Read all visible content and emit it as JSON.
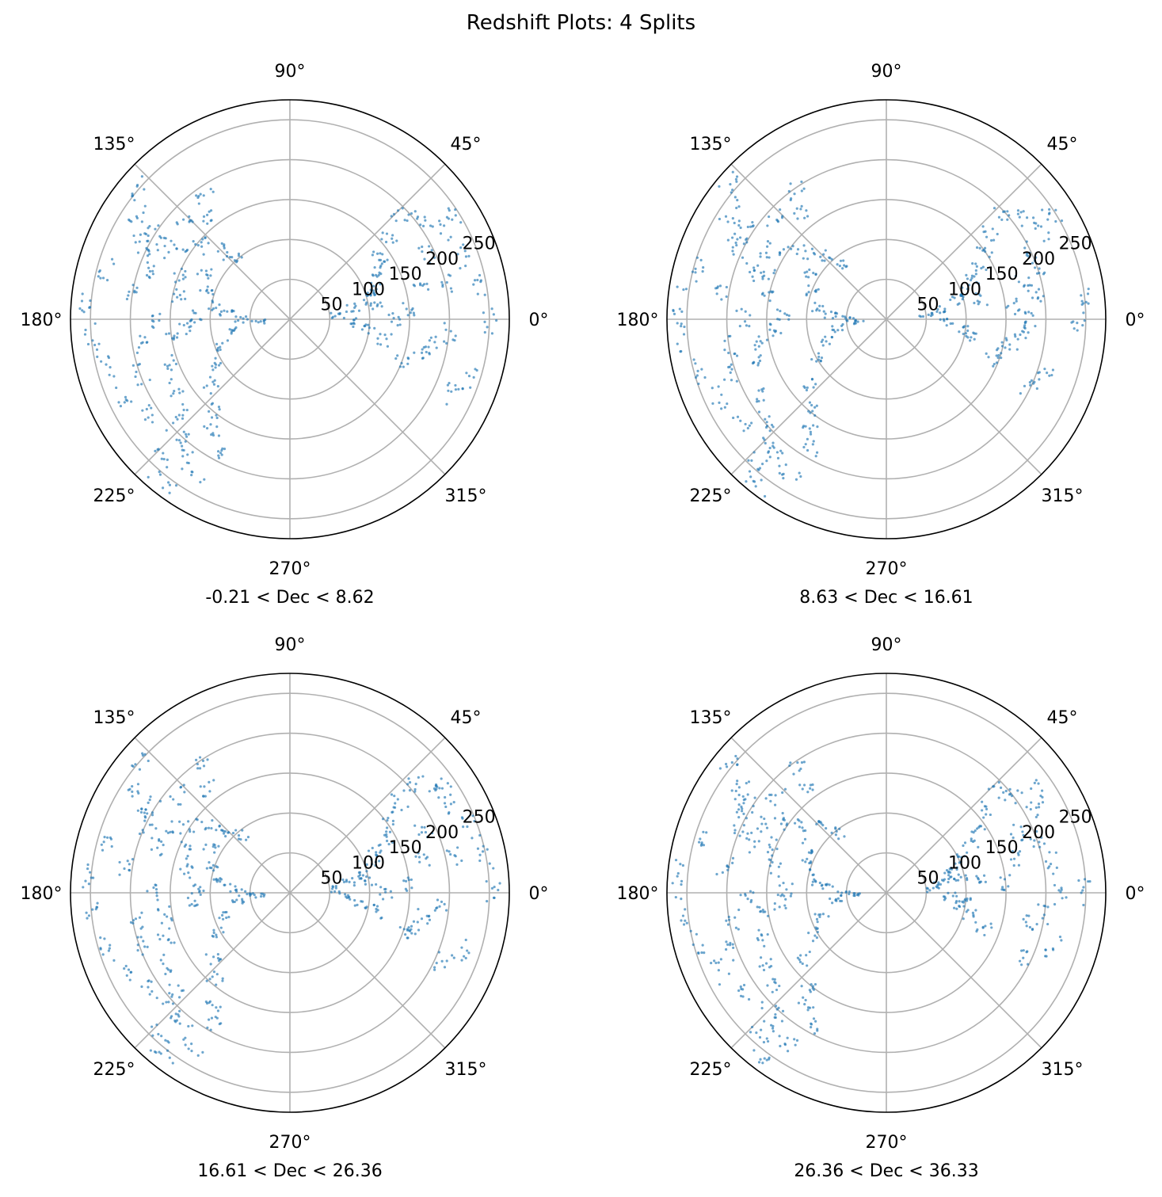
{
  "chart_data": {
    "type": "scatter",
    "title": "Redshift Plots: 4 Splits",
    "projection": "polar",
    "theta_ticks": [
      "0°",
      "45°",
      "90°",
      "135°",
      "180°",
      "225°",
      "270°",
      "315°"
    ],
    "r_ticks": [
      "50",
      "100",
      "150",
      "200",
      "250"
    ],
    "r_tick_values": [
      50,
      100,
      150,
      200,
      250
    ],
    "rlim": [
      0,
      275
    ],
    "color": "#1f77b4",
    "grid": true,
    "panels": [
      {
        "xlabel": "-0.21 < Dec < 8.62",
        "points": [
          [
            140,
            250
          ],
          [
            145,
            230
          ],
          [
            150,
            215
          ],
          [
            155,
            200
          ],
          [
            160,
            185
          ],
          [
            150,
            180
          ],
          [
            145,
            160
          ],
          [
            140,
            140
          ],
          [
            135,
            120
          ],
          [
            130,
            100
          ],
          [
            150,
            120
          ],
          [
            160,
            110
          ],
          [
            170,
            95
          ],
          [
            175,
            80
          ],
          [
            180,
            60
          ],
          [
            185,
            40
          ],
          [
            190,
            70
          ],
          [
            200,
            90
          ],
          [
            210,
            110
          ],
          [
            220,
            130
          ],
          [
            230,
            150
          ],
          [
            235,
            170
          ],
          [
            240,
            190
          ],
          [
            225,
            200
          ],
          [
            215,
            215
          ],
          [
            205,
            230
          ],
          [
            195,
            240
          ],
          [
            185,
            250
          ],
          [
            175,
            255
          ],
          [
            165,
            240
          ],
          [
            170,
            200
          ],
          [
            180,
            170
          ],
          [
            190,
            150
          ],
          [
            200,
            160
          ],
          [
            210,
            170
          ],
          [
            220,
            180
          ],
          [
            230,
            210
          ],
          [
            228,
            235
          ],
          [
            238,
            225
          ],
          [
            232,
            260
          ],
          [
            178,
            120
          ],
          [
            168,
            140
          ],
          [
            158,
            150
          ],
          [
            148,
            200
          ],
          [
            138,
            180
          ],
          [
            128,
            160
          ],
          [
            125,
            190
          ],
          [
            200,
            200
          ],
          [
            190,
            190
          ],
          [
            185,
            130
          ],
          [
            5,
            60
          ],
          [
            10,
            80
          ],
          [
            15,
            100
          ],
          [
            20,
            110
          ],
          [
            25,
            120
          ],
          [
            30,
            130
          ],
          [
            35,
            140
          ],
          [
            40,
            160
          ],
          [
            42,
            190
          ],
          [
            38,
            210
          ],
          [
            30,
            220
          ],
          [
            20,
            230
          ],
          [
            10,
            240
          ],
          [
            0,
            250
          ],
          [
            -5,
            200
          ],
          [
            -10,
            180
          ],
          [
            -15,
            170
          ],
          [
            -20,
            150
          ],
          [
            -12,
            120
          ],
          [
            -8,
            100
          ],
          [
            -3,
            80
          ],
          [
            5,
            150
          ],
          [
            15,
            170
          ],
          [
            25,
            190
          ],
          [
            33,
            240
          ],
          [
            -25,
            220
          ],
          [
            -18,
            240
          ],
          [
            0,
            130
          ],
          [
            8,
            110
          ],
          [
            12,
            200
          ]
        ]
      },
      {
        "xlabel": "8.63 < Dec < 16.61",
        "points": [
          [
            140,
            260
          ],
          [
            145,
            235
          ],
          [
            150,
            220
          ],
          [
            155,
            205
          ],
          [
            160,
            180
          ],
          [
            150,
            170
          ],
          [
            145,
            150
          ],
          [
            140,
            130
          ],
          [
            135,
            110
          ],
          [
            130,
            90
          ],
          [
            150,
            110
          ],
          [
            160,
            100
          ],
          [
            170,
            85
          ],
          [
            175,
            70
          ],
          [
            180,
            50
          ],
          [
            185,
            35
          ],
          [
            190,
            60
          ],
          [
            200,
            80
          ],
          [
            210,
            100
          ],
          [
            220,
            125
          ],
          [
            230,
            145
          ],
          [
            235,
            165
          ],
          [
            240,
            185
          ],
          [
            225,
            210
          ],
          [
            215,
            220
          ],
          [
            205,
            235
          ],
          [
            195,
            245
          ],
          [
            185,
            255
          ],
          [
            175,
            260
          ],
          [
            165,
            245
          ],
          [
            170,
            210
          ],
          [
            180,
            180
          ],
          [
            190,
            160
          ],
          [
            200,
            170
          ],
          [
            210,
            185
          ],
          [
            220,
            195
          ],
          [
            230,
            220
          ],
          [
            228,
            240
          ],
          [
            238,
            230
          ],
          [
            232,
            262
          ],
          [
            178,
            130
          ],
          [
            168,
            150
          ],
          [
            158,
            160
          ],
          [
            148,
            210
          ],
          [
            138,
            190
          ],
          [
            128,
            170
          ],
          [
            125,
            200
          ],
          [
            200,
            210
          ],
          [
            190,
            200
          ],
          [
            185,
            140
          ],
          [
            5,
            50
          ],
          [
            10,
            70
          ],
          [
            15,
            90
          ],
          [
            20,
            105
          ],
          [
            25,
            120
          ],
          [
            30,
            135
          ],
          [
            35,
            150
          ],
          [
            40,
            170
          ],
          [
            42,
            195
          ],
          [
            38,
            215
          ],
          [
            30,
            225
          ],
          [
            20,
            200
          ],
          [
            10,
            190
          ],
          [
            0,
            180
          ],
          [
            -5,
            170
          ],
          [
            -10,
            160
          ],
          [
            -15,
            150
          ],
          [
            -20,
            140
          ],
          [
            -12,
            110
          ],
          [
            -8,
            95
          ],
          [
            -3,
            75
          ],
          [
            5,
            160
          ],
          [
            15,
            180
          ],
          [
            25,
            200
          ],
          [
            33,
            245
          ],
          [
            -25,
            200
          ],
          [
            -18,
            210
          ],
          [
            0,
            240
          ],
          [
            8,
            250
          ],
          [
            12,
            120
          ]
        ]
      },
      {
        "xlabel": "16.61 < Dec < 26.36",
        "points": [
          [
            140,
            250
          ],
          [
            145,
            235
          ],
          [
            150,
            210
          ],
          [
            155,
            195
          ],
          [
            160,
            175
          ],
          [
            150,
            165
          ],
          [
            145,
            150
          ],
          [
            140,
            130
          ],
          [
            135,
            115
          ],
          [
            130,
            95
          ],
          [
            150,
            115
          ],
          [
            160,
            105
          ],
          [
            170,
            90
          ],
          [
            175,
            75
          ],
          [
            180,
            55
          ],
          [
            185,
            40
          ],
          [
            190,
            65
          ],
          [
            200,
            85
          ],
          [
            210,
            105
          ],
          [
            220,
            125
          ],
          [
            230,
            145
          ],
          [
            235,
            165
          ],
          [
            240,
            190
          ],
          [
            225,
            205
          ],
          [
            215,
            215
          ],
          [
            205,
            230
          ],
          [
            195,
            240
          ],
          [
            185,
            250
          ],
          [
            175,
            255
          ],
          [
            165,
            235
          ],
          [
            170,
            210
          ],
          [
            180,
            175
          ],
          [
            190,
            160
          ],
          [
            200,
            165
          ],
          [
            210,
            180
          ],
          [
            220,
            190
          ],
          [
            230,
            215
          ],
          [
            228,
            240
          ],
          [
            238,
            230
          ],
          [
            232,
            255
          ],
          [
            178,
            115
          ],
          [
            168,
            135
          ],
          [
            158,
            145
          ],
          [
            148,
            205
          ],
          [
            138,
            185
          ],
          [
            128,
            165
          ],
          [
            125,
            195
          ],
          [
            200,
            200
          ],
          [
            190,
            195
          ],
          [
            185,
            120
          ],
          [
            5,
            55
          ],
          [
            10,
            75
          ],
          [
            15,
            95
          ],
          [
            20,
            110
          ],
          [
            25,
            120
          ],
          [
            30,
            140
          ],
          [
            35,
            155
          ],
          [
            40,
            175
          ],
          [
            42,
            200
          ],
          [
            38,
            220
          ],
          [
            30,
            230
          ],
          [
            20,
            240
          ],
          [
            10,
            250
          ],
          [
            0,
            255
          ],
          [
            -5,
            190
          ],
          [
            -10,
            170
          ],
          [
            -15,
            160
          ],
          [
            -20,
            150
          ],
          [
            -12,
            115
          ],
          [
            -8,
            90
          ],
          [
            -3,
            70
          ],
          [
            5,
            150
          ],
          [
            15,
            170
          ],
          [
            25,
            185
          ],
          [
            33,
            235
          ],
          [
            -25,
            210
          ],
          [
            -18,
            230
          ],
          [
            0,
            120
          ],
          [
            8,
            100
          ],
          [
            12,
            210
          ]
        ]
      },
      {
        "xlabel": "26.36 < Dec < 36.33",
        "points": [
          [
            140,
            255
          ],
          [
            145,
            230
          ],
          [
            150,
            215
          ],
          [
            155,
            200
          ],
          [
            160,
            180
          ],
          [
            150,
            175
          ],
          [
            145,
            155
          ],
          [
            140,
            135
          ],
          [
            135,
            115
          ],
          [
            130,
            95
          ],
          [
            150,
            115
          ],
          [
            160,
            105
          ],
          [
            170,
            90
          ],
          [
            175,
            75
          ],
          [
            180,
            55
          ],
          [
            185,
            40
          ],
          [
            190,
            65
          ],
          [
            200,
            85
          ],
          [
            210,
            105
          ],
          [
            220,
            130
          ],
          [
            230,
            150
          ],
          [
            235,
            170
          ],
          [
            240,
            190
          ],
          [
            225,
            205
          ],
          [
            215,
            215
          ],
          [
            205,
            230
          ],
          [
            195,
            245
          ],
          [
            185,
            255
          ],
          [
            175,
            260
          ],
          [
            165,
            240
          ],
          [
            170,
            205
          ],
          [
            180,
            175
          ],
          [
            190,
            155
          ],
          [
            200,
            165
          ],
          [
            210,
            175
          ],
          [
            220,
            185
          ],
          [
            230,
            215
          ],
          [
            228,
            235
          ],
          [
            238,
            225
          ],
          [
            232,
            260
          ],
          [
            178,
            125
          ],
          [
            168,
            145
          ],
          [
            158,
            155
          ],
          [
            148,
            205
          ],
          [
            138,
            185
          ],
          [
            128,
            165
          ],
          [
            125,
            195
          ],
          [
            200,
            205
          ],
          [
            190,
            195
          ],
          [
            185,
            135
          ],
          [
            5,
            60
          ],
          [
            10,
            70
          ],
          [
            15,
            80
          ],
          [
            20,
            90
          ],
          [
            25,
            100
          ],
          [
            30,
            120
          ],
          [
            35,
            140
          ],
          [
            40,
            160
          ],
          [
            42,
            190
          ],
          [
            38,
            205
          ],
          [
            30,
            215
          ],
          [
            20,
            200
          ],
          [
            10,
            210
          ],
          [
            0,
            220
          ],
          [
            -5,
            100
          ],
          [
            -10,
            90
          ],
          [
            -15,
            110
          ],
          [
            -20,
            130
          ],
          [
            -12,
            180
          ],
          [
            -8,
            200
          ],
          [
            -3,
            80
          ],
          [
            5,
            150
          ],
          [
            15,
            170
          ],
          [
            25,
            180
          ],
          [
            33,
            230
          ],
          [
            -25,
            190
          ],
          [
            -18,
            220
          ],
          [
            0,
            250
          ],
          [
            8,
            120
          ],
          [
            12,
            95
          ]
        ]
      }
    ]
  }
}
